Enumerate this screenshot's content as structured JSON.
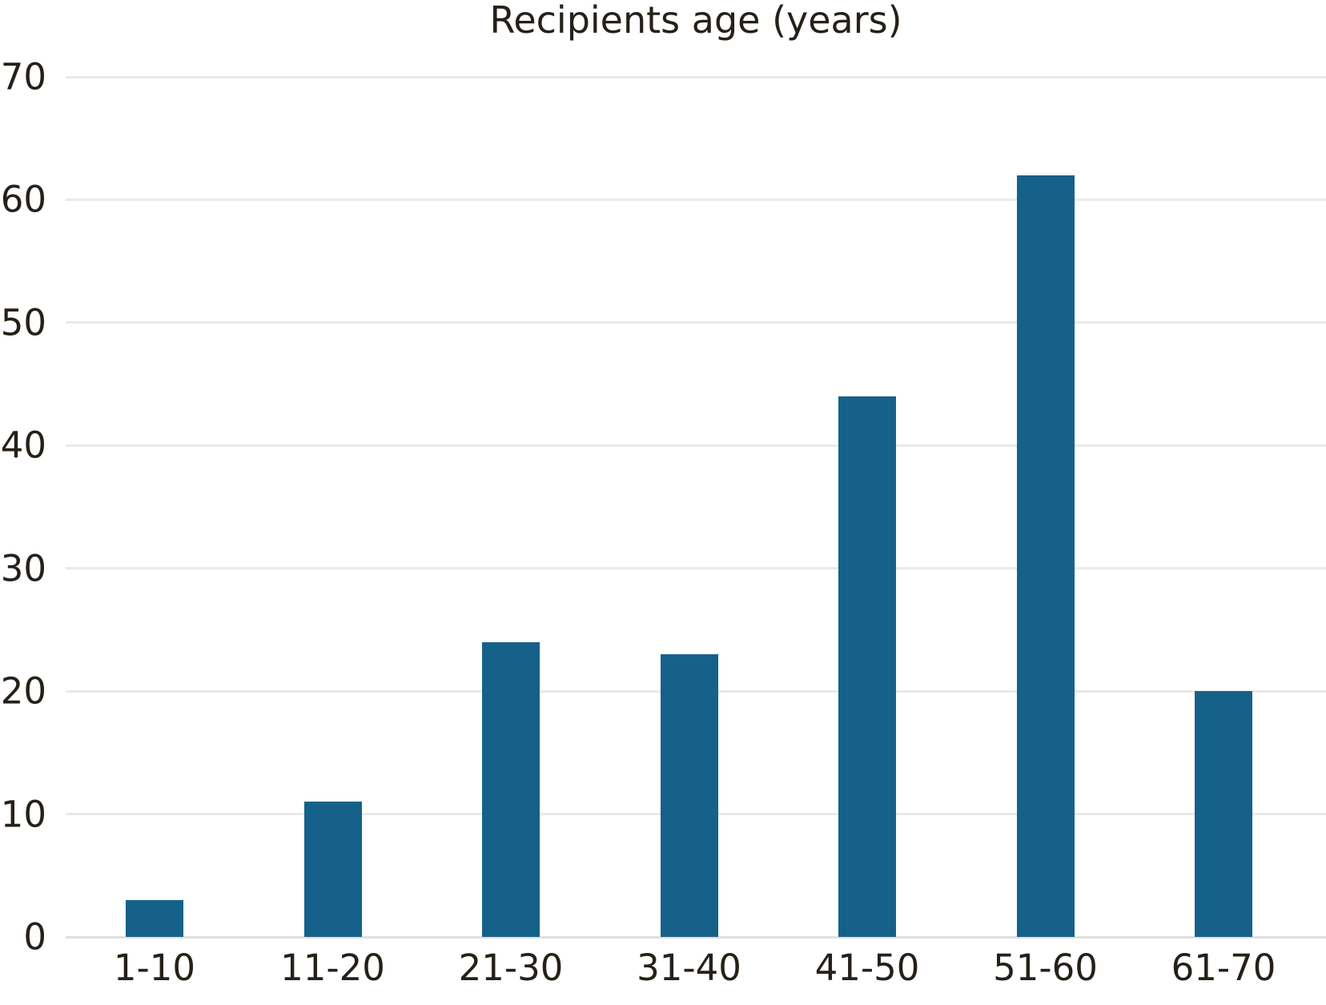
{
  "chart_data": {
    "type": "bar",
    "title": "Recipients age (years)",
    "categories": [
      "1-10",
      "11-20",
      "21-30",
      "31-40",
      "41-50",
      "51-60",
      "61-70"
    ],
    "values": [
      3,
      11,
      24,
      23,
      44,
      62,
      20
    ],
    "xlabel": "",
    "ylabel": "",
    "ylim": [
      0,
      70
    ],
    "yticks": [
      0,
      10,
      20,
      30,
      40,
      50,
      60,
      70
    ],
    "legend": "none",
    "grid": "horizontal",
    "bar_color": "#16618a",
    "gridline_color": "#e9e9e9",
    "axisline_color": "#e0e0e0",
    "text_color": "#262019",
    "background_color": "#ffffff"
  }
}
